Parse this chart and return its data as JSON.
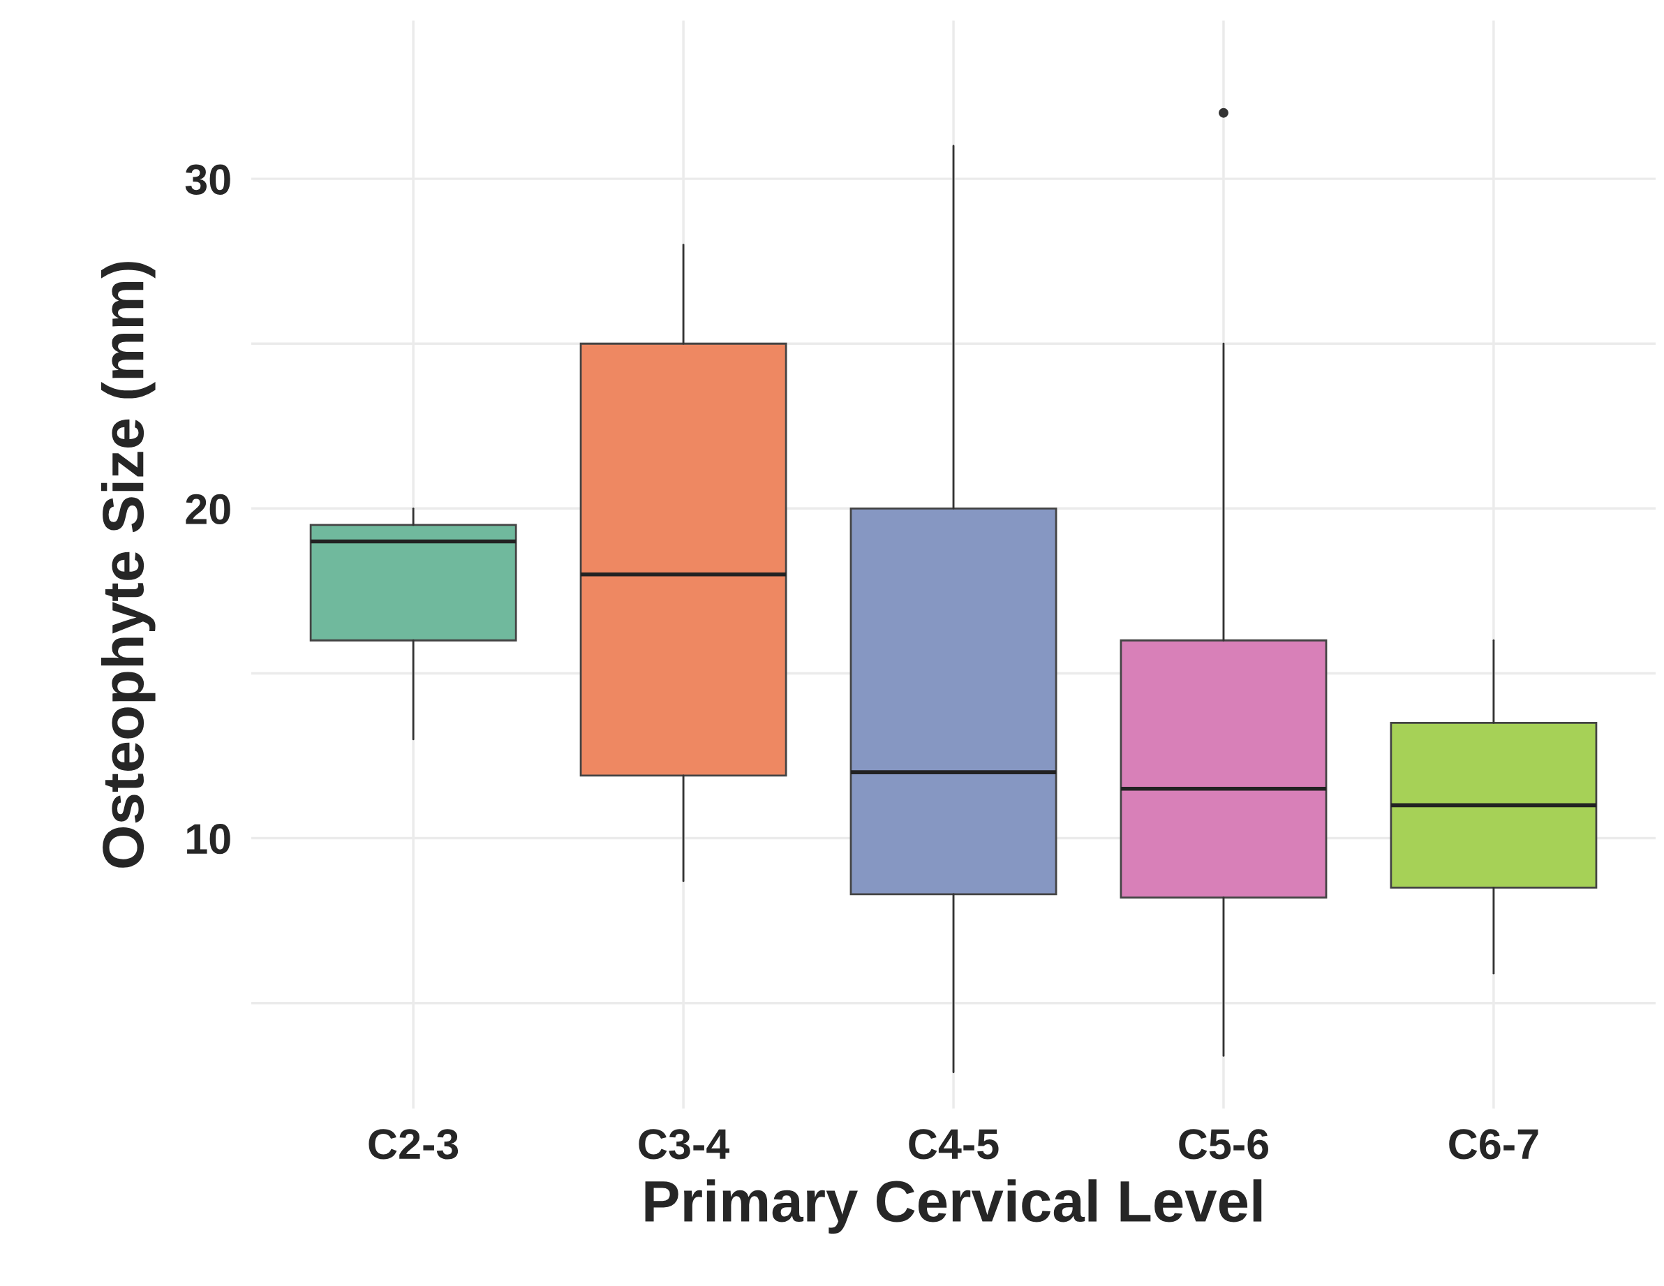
{
  "chart_data": {
    "type": "box",
    "xlabel": "Primary Cervical Level",
    "ylabel": "Osteophyte Size (mm)",
    "categories": [
      "C2-3",
      "C3-4",
      "C4-5",
      "C5-6",
      "C6-7"
    ],
    "colors": [
      "#70b99d",
      "#ee8862",
      "#8697c2",
      "#d880b8",
      "#a6d157"
    ],
    "boxes": [
      {
        "low": 13.0,
        "q1": 16.0,
        "median": 19.0,
        "q3": 19.5,
        "high": 20.0
      },
      {
        "low": 8.7,
        "q1": 11.9,
        "median": 18.0,
        "q3": 25.0,
        "high": 28.0
      },
      {
        "low": 2.9,
        "q1": 8.3,
        "median": 12.0,
        "q3": 20.0,
        "high": 31.0
      },
      {
        "low": 3.4,
        "q1": 8.2,
        "median": 11.5,
        "q3": 16.0,
        "high": 25.0,
        "outliers": [
          32.0
        ]
      },
      {
        "low": 5.9,
        "q1": 8.5,
        "median": 11.0,
        "q3": 13.5,
        "high": 16.0
      }
    ],
    "ylim": [
      1.8,
      34.8
    ],
    "yticks": [
      {
        "value": 5,
        "label": null
      },
      10,
      {
        "value": 15,
        "label": null
      },
      20,
      {
        "value": 25,
        "label": null
      },
      30
    ],
    "grid": true,
    "legend": false
  }
}
